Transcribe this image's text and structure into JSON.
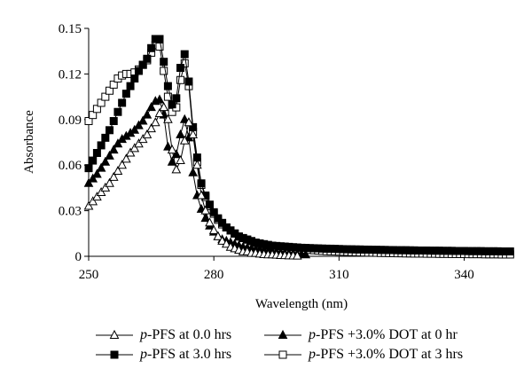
{
  "chart_data": {
    "type": "line",
    "xlabel": "Wavelength (nm)",
    "ylabel": "Absorbance",
    "xlim": [
      250,
      352
    ],
    "ylim": [
      0,
      0.15
    ],
    "x_ticks": [
      "250",
      "280",
      "310",
      "340"
    ],
    "x_tick_values": [
      250,
      280,
      310,
      340
    ],
    "y_ticks": [
      "0",
      "0.03",
      "0.06",
      "0.09",
      "0.12",
      "0.15"
    ],
    "y_tick_values": [
      0,
      0.03,
      0.06,
      0.09,
      0.12,
      0.15
    ],
    "grid": false,
    "legend_position": "bottom",
    "series": [
      {
        "name": "p-PFS at 0.0 hrs",
        "legend_prefix": "p",
        "legend_rest": "-PFS at 0.0 hrs",
        "marker": "triangle-open",
        "x": [
          250,
          251,
          252,
          253,
          254,
          255,
          256,
          257,
          258,
          259,
          260,
          261,
          262,
          263,
          264,
          265,
          266,
          267,
          268,
          269,
          270,
          271,
          272,
          273,
          274,
          275,
          276,
          277,
          278,
          279,
          280,
          281,
          282,
          283,
          284,
          285,
          286,
          287,
          288,
          289,
          290,
          291,
          292,
          293,
          294,
          295,
          296,
          297,
          298,
          299,
          300
        ],
        "y": [
          0.033,
          0.036,
          0.039,
          0.042,
          0.045,
          0.048,
          0.052,
          0.056,
          0.06,
          0.064,
          0.068,
          0.071,
          0.074,
          0.077,
          0.08,
          0.084,
          0.088,
          0.094,
          0.098,
          0.09,
          0.07,
          0.057,
          0.063,
          0.076,
          0.088,
          0.08,
          0.06,
          0.04,
          0.03,
          0.022,
          0.017,
          0.013,
          0.01,
          0.008,
          0.006,
          0.005,
          0.004,
          0.003,
          0.003,
          0.002,
          0.002,
          0.0015,
          0.0012,
          0.001,
          0.001,
          0.0008,
          0.0006,
          0.0005,
          0.0004,
          0.0003,
          0.0002
        ]
      },
      {
        "name": "p-PFS at 3.0 hrs",
        "legend_prefix": "p",
        "legend_rest": "-PFS at 3.0 hrs",
        "marker": "square-filled",
        "x": [
          250,
          251,
          252,
          253,
          254,
          255,
          256,
          257,
          258,
          259,
          260,
          261,
          262,
          263,
          264,
          265,
          266,
          267,
          268,
          269,
          270,
          271,
          272,
          273,
          274,
          275,
          276,
          277,
          278,
          279,
          280,
          281,
          282,
          283,
          284,
          285,
          286,
          287,
          288,
          289,
          290,
          291,
          292,
          293,
          294,
          295,
          296,
          297,
          298,
          299,
          300,
          301,
          302,
          303,
          304,
          305,
          306,
          307,
          308,
          309,
          310,
          311,
          312,
          313,
          314,
          315,
          316,
          317,
          318,
          319,
          320,
          321,
          322,
          323,
          324,
          325,
          326,
          327,
          328,
          329,
          330,
          331,
          332,
          333,
          334,
          335,
          336,
          337,
          338,
          339,
          340,
          341,
          342,
          343,
          344,
          345,
          346,
          347,
          348,
          349,
          350,
          351
        ],
        "y": [
          0.058,
          0.063,
          0.068,
          0.073,
          0.078,
          0.083,
          0.089,
          0.095,
          0.101,
          0.107,
          0.112,
          0.117,
          0.122,
          0.126,
          0.13,
          0.137,
          0.143,
          0.143,
          0.128,
          0.112,
          0.1,
          0.104,
          0.124,
          0.133,
          0.115,
          0.085,
          0.065,
          0.048,
          0.04,
          0.034,
          0.029,
          0.025,
          0.022,
          0.019,
          0.017,
          0.015,
          0.013,
          0.012,
          0.011,
          0.01,
          0.009,
          0.0085,
          0.008,
          0.0075,
          0.007,
          0.0068,
          0.0066,
          0.0064,
          0.0062,
          0.006,
          0.0058,
          0.0056,
          0.0055,
          0.0054,
          0.0053,
          0.0052,
          0.0051,
          0.005,
          0.005,
          0.0049,
          0.0048,
          0.0047,
          0.0046,
          0.0046,
          0.0045,
          0.0045,
          0.0044,
          0.0044,
          0.0043,
          0.0043,
          0.0042,
          0.0042,
          0.0041,
          0.0041,
          0.004,
          0.004,
          0.004,
          0.0039,
          0.0039,
          0.0038,
          0.0038,
          0.0038,
          0.0037,
          0.0037,
          0.0037,
          0.0036,
          0.0036,
          0.0036,
          0.0035,
          0.0035,
          0.0035,
          0.0034,
          0.0034,
          0.0034,
          0.0034,
          0.0033,
          0.0033,
          0.0033,
          0.0033,
          0.0032,
          0.0032,
          0.0032
        ]
      },
      {
        "name": "p-PFS +3.0% DOT at 0 hr",
        "legend_prefix": "p",
        "legend_rest": "-PFS +3.0% DOT at 0 hr",
        "marker": "triangle-filled",
        "x": [
          250,
          251,
          252,
          253,
          254,
          255,
          256,
          257,
          258,
          259,
          260,
          261,
          262,
          263,
          264,
          265,
          266,
          267,
          268,
          269,
          270,
          271,
          272,
          273,
          274,
          275,
          276,
          277,
          278,
          279,
          280,
          281,
          282,
          283,
          284,
          285,
          286,
          287,
          288,
          289,
          290,
          291,
          292,
          293,
          294,
          295,
          296,
          297,
          298,
          299,
          300,
          301,
          302
        ],
        "y": [
          0.048,
          0.051,
          0.054,
          0.058,
          0.062,
          0.066,
          0.07,
          0.074,
          0.077,
          0.079,
          0.081,
          0.083,
          0.086,
          0.089,
          0.093,
          0.098,
          0.102,
          0.103,
          0.093,
          0.072,
          0.062,
          0.067,
          0.08,
          0.09,
          0.078,
          0.055,
          0.04,
          0.031,
          0.025,
          0.02,
          0.016,
          0.013,
          0.011,
          0.01,
          0.009,
          0.008,
          0.007,
          0.006,
          0.0055,
          0.005,
          0.0045,
          0.004,
          0.0035,
          0.003,
          0.0028,
          0.0025,
          0.0022,
          0.002,
          0.0018,
          0.0016,
          0.0014,
          0.0012,
          0.001
        ]
      },
      {
        "name": "p-PFS +3.0% DOT at 3 hrs",
        "legend_prefix": "p",
        "legend_rest": "-PFS +3.0% DOT at 3 hrs",
        "marker": "square-open",
        "x": [
          250,
          251,
          252,
          253,
          254,
          255,
          256,
          257,
          258,
          259,
          260,
          261,
          262,
          263,
          264,
          265,
          266,
          267,
          268,
          269,
          270,
          271,
          272,
          273,
          274,
          275,
          276,
          277,
          278,
          279,
          280,
          281,
          282,
          283,
          284,
          285,
          286,
          287,
          288,
          289,
          290,
          291,
          292,
          293,
          294,
          295,
          296,
          297,
          298,
          299,
          300,
          301,
          302,
          303,
          304,
          305,
          306,
          307,
          308,
          309,
          310,
          311,
          312,
          313,
          314,
          315,
          316,
          317,
          318,
          319,
          320,
          321,
          322,
          323,
          324,
          325,
          326,
          327,
          328,
          329,
          330,
          331,
          332,
          333,
          334,
          335,
          336,
          337,
          338,
          339,
          340,
          341,
          342,
          343,
          344,
          345,
          346,
          347,
          348,
          349,
          350,
          351
        ],
        "y": [
          0.089,
          0.093,
          0.097,
          0.101,
          0.105,
          0.109,
          0.113,
          0.117,
          0.119,
          0.12,
          0.12,
          0.121,
          0.123,
          0.126,
          0.129,
          0.134,
          0.139,
          0.138,
          0.122,
          0.105,
          0.095,
          0.098,
          0.116,
          0.127,
          0.112,
          0.082,
          0.062,
          0.047,
          0.039,
          0.033,
          0.028,
          0.024,
          0.021,
          0.019,
          0.017,
          0.015,
          0.013,
          0.012,
          0.011,
          0.01,
          0.009,
          0.008,
          0.0075,
          0.007,
          0.0065,
          0.006,
          0.0058,
          0.0055,
          0.0052,
          0.005,
          0.0048,
          0.0046,
          0.0044,
          0.0042,
          0.004,
          0.0038,
          0.0036,
          0.0034,
          0.0033,
          0.0032,
          0.0031,
          0.003,
          0.0029,
          0.0028,
          0.0027,
          0.0026,
          0.0025,
          0.0024,
          0.0024,
          0.0023,
          0.0022,
          0.0022,
          0.0021,
          0.0021,
          0.002,
          0.002,
          0.0019,
          0.0019,
          0.0018,
          0.0018,
          0.0018,
          0.0017,
          0.0017,
          0.0017,
          0.0016,
          0.0016,
          0.0016,
          0.0015,
          0.0015,
          0.0015,
          0.0015,
          0.0014,
          0.0014,
          0.0014,
          0.0014,
          0.0013,
          0.0013,
          0.0013,
          0.0013,
          0.0012,
          0.0012,
          0.0012
        ]
      }
    ]
  }
}
